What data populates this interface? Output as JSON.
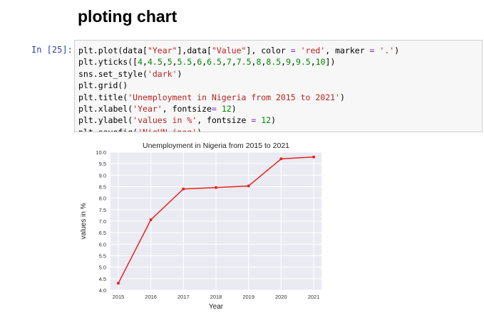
{
  "notebook": {
    "heading": "ploting chart",
    "cell": {
      "prompt": "In [25]:",
      "lines": [
        [
          [
            "plt.plot(data[",
            ""
          ],
          [
            "\"Year\"",
            "s"
          ],
          [
            "],data[",
            ""
          ],
          [
            "\"Value\"",
            "s"
          ],
          [
            "], color ",
            ""
          ],
          [
            "=",
            "o"
          ],
          [
            " ",
            ""
          ],
          [
            "'red'",
            "s"
          ],
          [
            ", marker ",
            ""
          ],
          [
            "=",
            "o"
          ],
          [
            " ",
            ""
          ],
          [
            "'.'",
            "s"
          ],
          [
            ")",
            ""
          ]
        ],
        [
          [
            "plt.yticks([",
            ""
          ],
          [
            "4",
            "n"
          ],
          [
            ",",
            ""
          ],
          [
            "4.5",
            "n"
          ],
          [
            ",",
            ""
          ],
          [
            "5",
            "n"
          ],
          [
            ",",
            ""
          ],
          [
            "5.5",
            "n"
          ],
          [
            ",",
            ""
          ],
          [
            "6",
            "n"
          ],
          [
            ",",
            ""
          ],
          [
            "6.5",
            "n"
          ],
          [
            ",",
            ""
          ],
          [
            "7",
            "n"
          ],
          [
            ",",
            ""
          ],
          [
            "7.5",
            "n"
          ],
          [
            ",",
            ""
          ],
          [
            "8",
            "n"
          ],
          [
            ",",
            ""
          ],
          [
            "8.5",
            "n"
          ],
          [
            ",",
            ""
          ],
          [
            "9",
            "n"
          ],
          [
            ",",
            ""
          ],
          [
            "9.5",
            "n"
          ],
          [
            ",",
            ""
          ],
          [
            "10",
            "n"
          ],
          [
            "])",
            ""
          ]
        ],
        [
          [
            "sns.set_style(",
            ""
          ],
          [
            "'dark'",
            "s"
          ],
          [
            ")",
            ""
          ]
        ],
        [
          [
            "plt.grid()",
            ""
          ]
        ],
        [
          [
            "plt.title(",
            ""
          ],
          [
            "'Unemployment in Nigeria from 2015 to 2021'",
            "s"
          ],
          [
            ")",
            ""
          ]
        ],
        [
          [
            "plt.xlabel(",
            ""
          ],
          [
            "'Year'",
            "s"
          ],
          [
            ", fontsize",
            ""
          ],
          [
            "=",
            "o"
          ],
          [
            " ",
            ""
          ],
          [
            "12",
            "n"
          ],
          [
            ")",
            ""
          ]
        ],
        [
          [
            "plt.ylabel(",
            ""
          ],
          [
            "'values in %'",
            "s"
          ],
          [
            ", fontsize ",
            ""
          ],
          [
            "=",
            "o"
          ],
          [
            " ",
            ""
          ],
          [
            "12",
            "n"
          ],
          [
            ")",
            ""
          ]
        ],
        [
          [
            "plt.savefig(",
            ""
          ],
          [
            "'NigUN.jpeg'",
            "s"
          ],
          [
            ")",
            ""
          ]
        ]
      ]
    }
  },
  "colors": {
    "line": "#e8231f",
    "plot_background": "#eaeaf2",
    "grid": "#ffffff"
  },
  "chart_data": {
    "type": "line",
    "title": "Unemployment in Nigeria from 2015 to 2021",
    "xlabel": "Year",
    "ylabel": "values in %",
    "x": [
      2015,
      2016,
      2017,
      2018,
      2019,
      2020,
      2021
    ],
    "y": [
      4.3,
      7.06,
      8.4,
      8.46,
      8.53,
      9.71,
      9.79
    ],
    "xticks": [
      "2015",
      "2016",
      "2017",
      "2018",
      "2019",
      "2020",
      "2021"
    ],
    "yticks": [
      "4.0",
      "4.5",
      "5.0",
      "5.5",
      "6.0",
      "6.5",
      "7.0",
      "7.5",
      "8.0",
      "8.5",
      "9.0",
      "9.5",
      "10.0"
    ],
    "ylim": [
      4.0,
      10.0
    ],
    "grid": true,
    "marker": "dot",
    "line_color": "red"
  }
}
